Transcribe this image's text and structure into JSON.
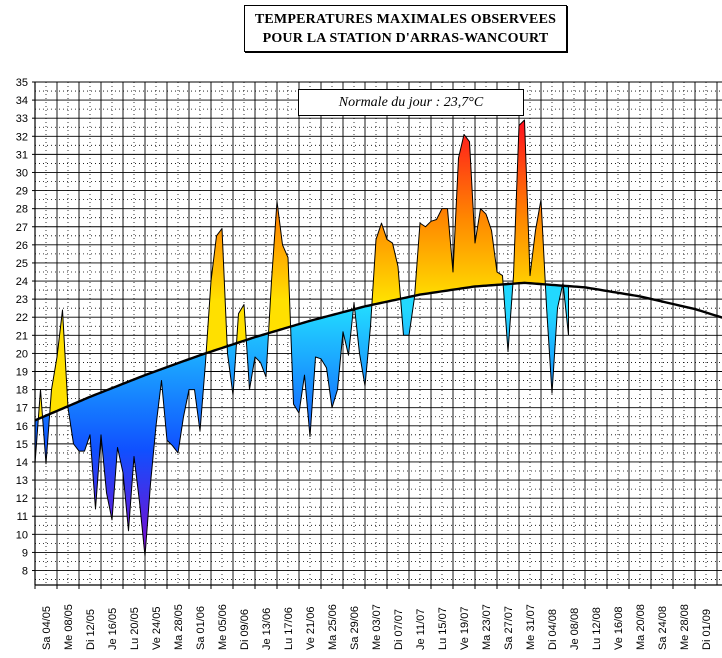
{
  "title": {
    "line1": "TEMPERATURES MAXIMALES OBSERVEES",
    "line2": "POUR LA STATION D'ARRAS-WANCOURT"
  },
  "normal_label": "Normale du jour : 23,7°C",
  "colors": {
    "grid": "#000000",
    "normal_line": "#000000",
    "cold_bottom": "#8a00c8",
    "cold_mid": "#1050ff",
    "cold_top": "#22d8ff",
    "warm_bottom": "#ffe000",
    "warm_mid": "#ff8800",
    "warm_top": "#ff1020"
  },
  "chart_data": {
    "type": "area",
    "title": "TEMPERATURES MAXIMALES OBSERVEES POUR LA STATION D'ARRAS-WANCOURT",
    "xlabel": "",
    "ylabel": "",
    "ylim": [
      7.2,
      35
    ],
    "yticks": [
      8,
      9,
      10,
      11,
      12,
      13,
      14,
      15,
      16,
      17,
      18,
      19,
      20,
      21,
      22,
      23,
      24,
      25,
      26,
      27,
      28,
      29,
      30,
      31,
      32,
      33,
      34,
      35
    ],
    "x_day_range": [
      0,
      148
    ],
    "x_tick_labels": [
      {
        "day": 0,
        "label": "Sa 04/05"
      },
      {
        "day": 4,
        "label": "Me 08/05"
      },
      {
        "day": 8,
        "label": "Di 12/05"
      },
      {
        "day": 12,
        "label": "Je 16/05"
      },
      {
        "day": 16,
        "label": "Lu 20/05"
      },
      {
        "day": 20,
        "label": "Ve 24/05"
      },
      {
        "day": 24,
        "label": "Ma 28/05"
      },
      {
        "day": 28,
        "label": "Sa 01/06"
      },
      {
        "day": 32,
        "label": "Me 05/06"
      },
      {
        "day": 36,
        "label": "Di 09/06"
      },
      {
        "day": 40,
        "label": "Je 13/06"
      },
      {
        "day": 44,
        "label": "Lu 17/06"
      },
      {
        "day": 48,
        "label": "Ve 21/06"
      },
      {
        "day": 52,
        "label": "Ma 25/06"
      },
      {
        "day": 56,
        "label": "Sa 29/06"
      },
      {
        "day": 60,
        "label": "Me 03/07"
      },
      {
        "day": 64,
        "label": "Di 07/07"
      },
      {
        "day": 68,
        "label": "Je 11/07"
      },
      {
        "day": 72,
        "label": "Lu 15/07"
      },
      {
        "day": 76,
        "label": "Ve 19/07"
      },
      {
        "day": 80,
        "label": "Ma 23/07"
      },
      {
        "day": 84,
        "label": "Sa 27/07"
      },
      {
        "day": 88,
        "label": "Me 31/07"
      },
      {
        "day": 92,
        "label": "Di 04/08"
      },
      {
        "day": 96,
        "label": "Je 08/08"
      },
      {
        "day": 100,
        "label": "Lu 12/08"
      },
      {
        "day": 104,
        "label": "Ve 16/08"
      },
      {
        "day": 108,
        "label": "Ma 20/08"
      },
      {
        "day": 112,
        "label": "Sa 24/08"
      },
      {
        "day": 116,
        "label": "Me 28/08"
      },
      {
        "day": 120,
        "label": "Di 01/09"
      }
    ],
    "series": [
      {
        "name": "Temperature maximale observee",
        "start_day": 0,
        "values": [
          13.9,
          18.0,
          13.9,
          18.0,
          19.8,
          22.4,
          17.0,
          15.0,
          14.6,
          14.6,
          15.5,
          11.4,
          15.5,
          12.3,
          10.8,
          14.8,
          13.4,
          10.2,
          14.3,
          11.8,
          8.8,
          12.8,
          16.0,
          18.5,
          15.2,
          14.9,
          14.5,
          16.5,
          18.0,
          18.0,
          15.7,
          19.5,
          24.0,
          26.5,
          26.9,
          20.0,
          17.7,
          22.2,
          22.7,
          18.0,
          19.8,
          19.5,
          18.7,
          24.0,
          28.4,
          26.0,
          25.3,
          17.2,
          16.7,
          18.8,
          15.4,
          19.8,
          19.7,
          19.2,
          17.0,
          18.0,
          21.2,
          19.9,
          22.8,
          20.0,
          18.2,
          21.5,
          26.3,
          27.2,
          26.3,
          26.1,
          24.8,
          21.0,
          21.0,
          23.1,
          27.2,
          27.0,
          27.3,
          27.4,
          28.0,
          28.0,
          24.5,
          30.8,
          32.1,
          31.7,
          26.1,
          28.0,
          27.7,
          26.8,
          24.5,
          24.3,
          20.1,
          24.3,
          32.6,
          32.9,
          24.3,
          26.8,
          28.5,
          22.6,
          17.8,
          22.5,
          23.9,
          21.0
        ]
      },
      {
        "name": "Normale du jour",
        "start_day": 0,
        "end_day": 148,
        "peak_day": 89,
        "peak_value": 23.9,
        "points": [
          {
            "day": 0,
            "value": 16.3
          },
          {
            "day": 10,
            "value": 17.6
          },
          {
            "day": 20,
            "value": 18.8
          },
          {
            "day": 30,
            "value": 19.9
          },
          {
            "day": 40,
            "value": 20.9
          },
          {
            "day": 50,
            "value": 21.8
          },
          {
            "day": 60,
            "value": 22.6
          },
          {
            "day": 70,
            "value": 23.25
          },
          {
            "day": 80,
            "value": 23.7
          },
          {
            "day": 89,
            "value": 23.9
          },
          {
            "day": 100,
            "value": 23.65
          },
          {
            "day": 110,
            "value": 23.15
          },
          {
            "day": 120,
            "value": 22.45
          },
          {
            "day": 130,
            "value": 21.5
          },
          {
            "day": 140,
            "value": 20.5
          },
          {
            "day": 148,
            "value": 19.7
          }
        ]
      }
    ]
  }
}
